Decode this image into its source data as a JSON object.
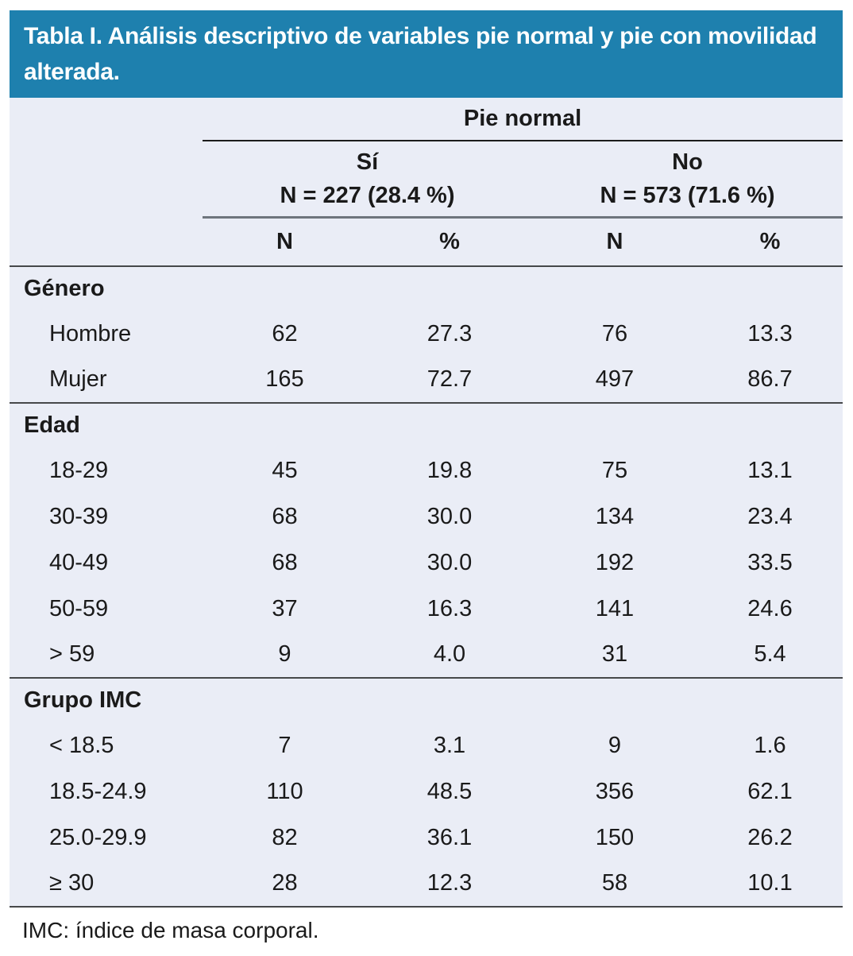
{
  "title": "Tabla I. Análisis descriptivo de variables pie normal y pie con movilidad alterada.",
  "colors": {
    "title_bar_bg": "#1e80ae",
    "title_text": "#ffffff",
    "table_body_bg": "#eaedf6",
    "rule_dark": "#46484a",
    "rule_gray": "#6e757d",
    "rule_black": "#1c1c1c"
  },
  "table": {
    "group_header": "Pie normal",
    "subgroups": [
      {
        "label": "Sí",
        "n_line": "N = 227 (28.4 %)"
      },
      {
        "label": "No",
        "n_line": "N = 573 (71.6 %)"
      }
    ],
    "columns": {
      "n1": "N",
      "p1": "%",
      "n2": "N",
      "p2": "%"
    },
    "sections": [
      {
        "header": "Género",
        "rows": [
          {
            "label": "Hombre",
            "values": [
              "62",
              "27.3",
              "76",
              "13.3"
            ]
          },
          {
            "label": "Mujer",
            "values": [
              "165",
              "72.7",
              "497",
              "86.7"
            ]
          }
        ]
      },
      {
        "header": "Edad",
        "rows": [
          {
            "label": "18-29",
            "values": [
              "45",
              "19.8",
              "75",
              "13.1"
            ]
          },
          {
            "label": "30-39",
            "values": [
              "68",
              "30.0",
              "134",
              "23.4"
            ]
          },
          {
            "label": "40-49",
            "values": [
              "68",
              "30.0",
              "192",
              "33.5"
            ]
          },
          {
            "label": "50-59",
            "values": [
              "37",
              "16.3",
              "141",
              "24.6"
            ]
          },
          {
            "label": "> 59",
            "values": [
              "9",
              "4.0",
              "31",
              "5.4"
            ]
          }
        ]
      },
      {
        "header": "Grupo IMC",
        "rows": [
          {
            "label": "< 18.5",
            "values": [
              "7",
              "3.1",
              "9",
              "1.6"
            ]
          },
          {
            "label": "18.5-24.9",
            "values": [
              "110",
              "48.5",
              "356",
              "62.1"
            ]
          },
          {
            "label": "25.0-29.9",
            "values": [
              "82",
              "36.1",
              "150",
              "26.2"
            ]
          },
          {
            "label": "≥ 30",
            "values": [
              "28",
              "12.3",
              "58",
              "10.1"
            ]
          }
        ]
      }
    ]
  },
  "footnote": "IMC: índice de masa corporal."
}
